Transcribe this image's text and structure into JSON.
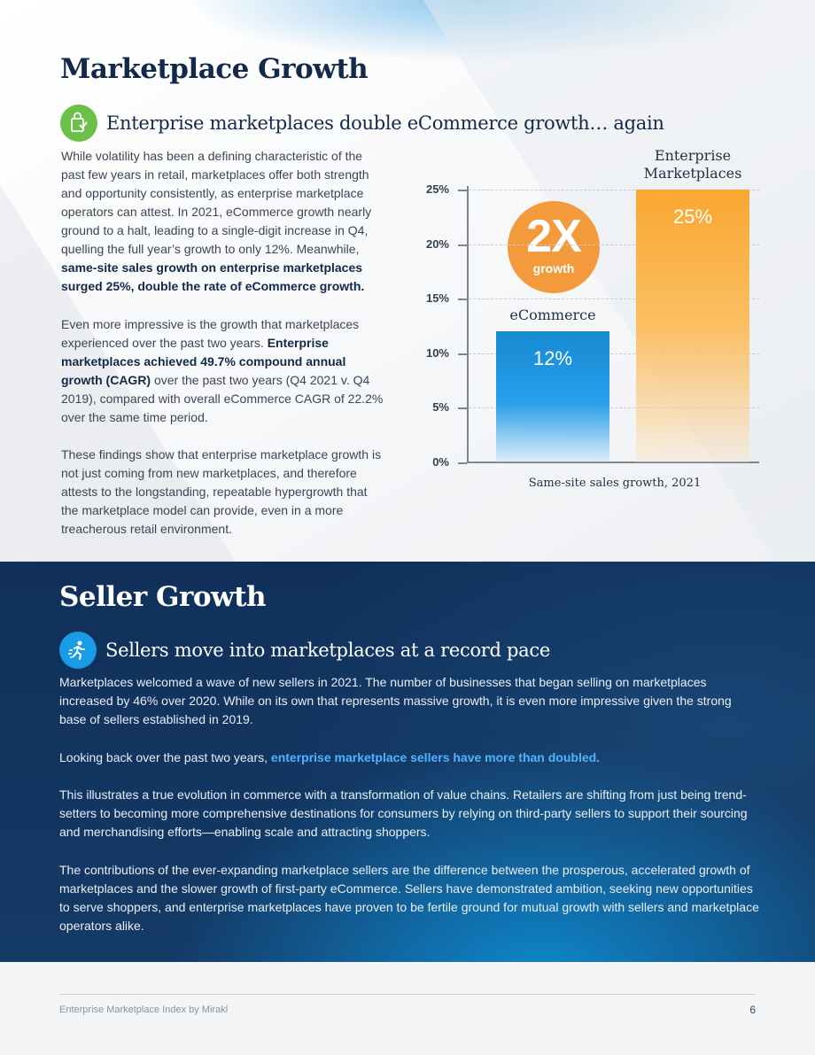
{
  "marketplace": {
    "title": "Marketplace Growth",
    "subtitle": "Enterprise marketplaces double eCommerce growth… again",
    "p1_a": "While volatility has been a defining characteristic of the past few years in retail, marketplaces offer both strength and opportunity consistently, as enterprise marketplace operators can attest. In 2021, eCommerce growth nearly ground to a halt, leading to a single-digit increase in Q4, quelling the full year’s growth to only 12%. Meanwhile,",
    "p1_b": "same-site sales growth on enterprise marketplaces surged 25%, double the rate of eCommerce growth.",
    "p2_a": "Even more impressive is the growth that marketplaces experienced over the past two years.",
    "p2_b": "Enterprise marketplaces achieved 49.7% compound annual growth (CAGR)",
    "p2_c": "over the past two years (Q4 2021 v. Q4 2019), compared with overall eCommerce CAGR of 22.2% over the same time period.",
    "p3": "These findings show that enterprise marketplace growth is not just coming from new marketplaces, and therefore attests to the longstanding, repeatable hypergrowth that the marketplace model can provide, even in a more treacherous retail environment."
  },
  "chart_data": {
    "type": "bar",
    "categories": [
      "eCommerce",
      "Enterprise Marketplaces"
    ],
    "values": [
      12,
      25
    ],
    "value_labels": [
      "12%",
      "25%"
    ],
    "y_ticks": [
      "0%",
      "5%",
      "10%",
      "15%",
      "20%",
      "25%"
    ],
    "ylim": [
      0,
      25
    ],
    "xlabel": "Same-site sales growth, 2021",
    "ylabel": "",
    "grid": true,
    "colors": [
      "#1a8fd8",
      "#f9a731"
    ],
    "annotation": {
      "big": "2X",
      "small": "growth"
    }
  },
  "seller": {
    "title": "Seller Growth",
    "subtitle": "Sellers move into marketplaces at a record pace",
    "p1": "Marketplaces welcomed a wave of new sellers in 2021. The number of businesses that began selling on marketplaces increased by 46% over 2020.  While on its own that represents massive growth, it is even more impressive given the strong base of sellers established in 2019.",
    "p2_a": "Looking back over the past two years,",
    "p2_b": "enterprise marketplace sellers have more than doubled.",
    "p3": "This illustrates a true evolution in commerce with a transformation of value chains. Retailers are shifting from just being trend-setters to becoming more comprehensive destinations for consumers by relying on third-party sellers to support their sourcing and merchandising efforts—enabling scale and attracting shoppers.",
    "p4": "The contributions of the ever-expanding marketplace sellers are the difference between the prosperous, accelerated growth of marketplaces and the slower growth of first-party eCommerce. Sellers have demonstrated ambition, seeking new opportunities to serve shoppers, and enterprise marketplaces have proven to be fertile ground for mutual growth with sellers and marketplace operators alike."
  },
  "footer": {
    "left": "Enterprise Marketplace Index by Mirakl",
    "page": "6"
  },
  "colors": {
    "navy": "#13294a",
    "green_icon": "#6cc04a",
    "blue_icon": "#1a9be6",
    "highlight": "#4fb3ff"
  }
}
